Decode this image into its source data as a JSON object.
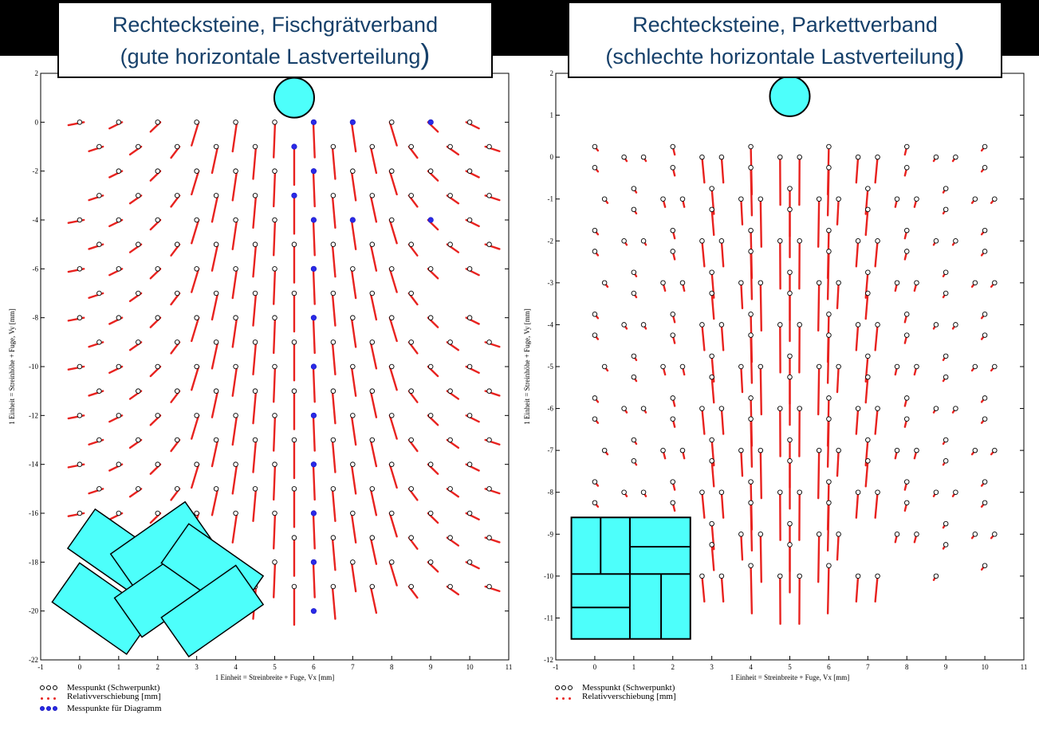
{
  "titles": {
    "left": [
      "Rechtecksteine, Fischgrätverband",
      "(gute horizontale Lastverteilung",
      ")"
    ],
    "right": [
      "Rechtecksteine, Parkettverband",
      "(schlechte horizontale Lastverteilung",
      ")"
    ]
  },
  "colors": {
    "arrow": "#e8221f",
    "blue_point": "#2a2ae8",
    "load_circle": "#4dfffb",
    "stone_fill": "#4dfffb",
    "title_text": "#16406a"
  },
  "legend": {
    "left": [
      "Messpunkt (Schwerpunkt)",
      "Relativverschiebung [mm]",
      "Messpunkte für Diagramm"
    ],
    "right": [
      "Messpunkt (Schwerpunkt)",
      "Relativverschiebung [mm]"
    ]
  },
  "chart_data": [
    {
      "type": "scatter",
      "xlabel": "1 Einheit = Streinbreite + Fuge, Vx [mm]",
      "ylabel": "1 Einheit = Streinhöhe + Fuge, Vy [mm]",
      "xlim": [
        -1,
        11
      ],
      "ylim": [
        -22,
        2
      ],
      "xticks": [
        -1,
        0,
        1,
        2,
        3,
        4,
        5,
        6,
        7,
        8,
        9,
        10,
        11
      ],
      "yticks": [
        -22,
        -20,
        -18,
        -16,
        -14,
        -12,
        -10,
        -8,
        -6,
        -4,
        -2,
        0,
        2
      ],
      "load_circle": {
        "x": 5.5,
        "y": 1
      },
      "blue_points": [
        [
          6,
          0
        ],
        [
          7,
          0
        ],
        [
          9,
          0
        ],
        [
          5.5,
          -1
        ],
        [
          6,
          -2
        ],
        [
          5.5,
          -3
        ],
        [
          6,
          -4
        ],
        [
          7,
          -4
        ],
        [
          9,
          -4
        ],
        [
          6,
          -6
        ],
        [
          6,
          -8
        ],
        [
          6,
          -10
        ],
        [
          6,
          -12
        ],
        [
          6,
          -14
        ],
        [
          6,
          -16
        ],
        [
          6,
          -18
        ],
        [
          6,
          -20
        ]
      ],
      "grid": [
        {
          "y": 0,
          "xs": [
            0,
            1,
            2,
            3,
            4,
            5,
            6,
            7,
            8,
            9,
            10
          ]
        },
        {
          "y": -1,
          "xs": [
            0.5,
            1.5,
            2.5,
            3.5,
            4.5,
            5.5,
            6.5,
            7.5,
            8.5,
            9.5,
            10.5
          ]
        },
        {
          "y": -2,
          "xs": [
            1,
            2,
            3,
            4,
            5,
            6,
            7,
            8,
            9,
            10
          ]
        },
        {
          "y": -3,
          "xs": [
            0.5,
            1.5,
            2.5,
            3.5,
            4.5,
            5.5,
            6.5,
            7.5,
            8.5,
            9.5,
            10.5
          ]
        },
        {
          "y": -4,
          "xs": [
            0,
            1,
            2,
            3,
            4,
            5,
            6,
            7,
            8,
            9,
            10
          ]
        },
        {
          "y": -5,
          "xs": [
            0.5,
            1.5,
            2.5,
            3.5,
            4.5,
            5.5,
            6.5,
            7.5,
            8.5,
            9.5,
            10.5
          ]
        },
        {
          "y": -6,
          "xs": [
            0,
            1,
            2,
            3,
            4,
            5,
            6,
            7,
            8,
            9,
            10
          ]
        },
        {
          "y": -7,
          "xs": [
            0.5,
            1.5,
            2.5,
            3.5,
            4.5,
            5.5,
            6.5,
            7.5,
            8.5
          ]
        },
        {
          "y": -8,
          "xs": [
            0,
            1,
            2,
            3,
            4,
            5,
            6,
            7,
            8,
            9,
            10
          ]
        },
        {
          "y": -9,
          "xs": [
            0.5,
            1.5,
            2.5,
            3.5,
            4.5,
            5.5,
            6.5,
            7.5,
            8.5,
            9.5,
            10.5
          ]
        },
        {
          "y": -10,
          "xs": [
            0,
            1,
            2,
            3,
            4,
            5,
            6,
            7,
            8,
            9,
            10
          ]
        },
        {
          "y": -11,
          "xs": [
            0.5,
            1.5,
            2.5,
            3.5,
            4.5,
            5.5,
            6.5,
            7.5,
            8.5,
            9.5,
            10.5
          ]
        },
        {
          "y": -12,
          "xs": [
            0,
            1,
            2,
            3,
            4,
            5,
            6,
            7,
            8,
            9,
            10
          ]
        },
        {
          "y": -13,
          "xs": [
            0.5,
            1.5,
            2.5,
            3.5,
            4.5,
            5.5,
            6.5,
            7.5,
            8.5,
            9.5,
            10.5
          ]
        },
        {
          "y": -14,
          "xs": [
            0,
            1,
            2,
            3,
            4,
            5,
            6,
            7,
            8,
            9,
            10
          ]
        },
        {
          "y": -15,
          "xs": [
            0.5,
            1.5,
            2.5,
            3.5,
            4.5,
            5.5,
            6.5,
            7.5,
            8.5,
            9.5,
            10.5
          ]
        },
        {
          "y": -16,
          "xs": [
            0,
            1,
            2,
            3,
            4,
            5,
            6,
            7,
            8,
            9,
            10
          ]
        },
        {
          "y": -17,
          "xs": [
            0.5,
            5.5,
            6.5,
            7.5,
            8.5,
            9.5,
            10.5
          ]
        },
        {
          "y": -18,
          "xs": [
            5,
            6,
            7,
            8,
            9,
            10
          ]
        },
        {
          "y": -19,
          "xs": [
            4.5,
            5.5,
            6.5,
            7.5,
            8.5,
            9.5,
            10.5
          ]
        }
      ],
      "stones": [
        {
          "cx": 1.0,
          "cy": -17.7,
          "angle": 35
        },
        {
          "cx": 2.1,
          "cy": -17.4,
          "angle": -35
        },
        {
          "cx": 0.6,
          "cy": -19.9,
          "angle": 35
        },
        {
          "cx": 2.2,
          "cy": -19.2,
          "angle": -35
        },
        {
          "cx": 3.4,
          "cy": -18.3,
          "angle": 35
        },
        {
          "cx": 3.4,
          "cy": -20.0,
          "angle": -35
        }
      ]
    },
    {
      "type": "scatter",
      "xlabel": "1 Einheit = Streinbreite + Fuge, Vx [mm]",
      "ylabel": "1 Einheit = Streinhöhe + Fuge, Vy [mm]",
      "xlim": [
        -1,
        11
      ],
      "ylim": [
        -12,
        2
      ],
      "xticks": [
        -1,
        0,
        1,
        2,
        3,
        4,
        5,
        6,
        7,
        8,
        9,
        10,
        11
      ],
      "yticks": [
        -12,
        -11,
        -10,
        -9,
        -8,
        -7,
        -6,
        -5,
        -4,
        -3,
        -2,
        -1,
        0,
        1,
        2
      ],
      "load_circle": {
        "x": 5,
        "y": 1.45
      },
      "columns": [
        {
          "x": 0,
          "ys": [
            0.25,
            -0.25,
            -1.75,
            -2.25,
            -3.75,
            -4.25,
            -5.75,
            -6.25,
            -7.75,
            -8.25
          ]
        },
        {
          "x": 0.25,
          "ys": [
            -1,
            -3,
            -5,
            -7
          ]
        },
        {
          "x": 0.75,
          "ys": [
            0,
            -2,
            -4,
            -6,
            -8
          ]
        },
        {
          "x": 1,
          "ys": [
            -0.75,
            -1.25,
            -2.75,
            -3.25,
            -4.75,
            -5.25,
            -6.75,
            -7.25
          ]
        },
        {
          "x": 1.25,
          "ys": [
            0,
            -2,
            -4,
            -6,
            -8
          ]
        },
        {
          "x": 1.75,
          "ys": [
            -1,
            -3,
            -5,
            -7,
            -9
          ]
        },
        {
          "x": 2,
          "ys": [
            0.25,
            -0.25,
            -1.75,
            -2.25,
            -3.75,
            -4.25,
            -5.75,
            -6.25,
            -7.75,
            -8.25
          ]
        },
        {
          "x": 2.25,
          "ys": [
            -1,
            -3,
            -5,
            -7,
            -9
          ]
        },
        {
          "x": 2.75,
          "ys": [
            0,
            -2,
            -4,
            -6,
            -8,
            -10
          ]
        },
        {
          "x": 3,
          "ys": [
            -0.75,
            -1.25,
            -2.75,
            -3.25,
            -4.75,
            -5.25,
            -6.75,
            -7.25,
            -8.75,
            -9.25
          ]
        },
        {
          "x": 3.25,
          "ys": [
            0,
            -2,
            -4,
            -6,
            -8,
            -10
          ]
        },
        {
          "x": 3.75,
          "ys": [
            -1,
            -3,
            -5,
            -7,
            -9
          ]
        },
        {
          "x": 4,
          "ys": [
            0.25,
            -0.25,
            -1.75,
            -2.25,
            -3.75,
            -4.25,
            -5.75,
            -6.25,
            -7.75,
            -8.25,
            -9.75
          ]
        },
        {
          "x": 4.25,
          "ys": [
            -1,
            -3,
            -5,
            -7,
            -9
          ]
        },
        {
          "x": 4.75,
          "ys": [
            0,
            -2,
            -4,
            -6,
            -8,
            -10
          ]
        },
        {
          "x": 5,
          "ys": [
            -0.75,
            -1.25,
            -2.75,
            -3.25,
            -4.75,
            -5.25,
            -6.75,
            -7.25,
            -8.75,
            -9.25
          ]
        },
        {
          "x": 5.25,
          "ys": [
            0,
            -2,
            -4,
            -6,
            -8,
            -10
          ]
        },
        {
          "x": 5.75,
          "ys": [
            -1,
            -3,
            -5,
            -7,
            -9
          ]
        },
        {
          "x": 6,
          "ys": [
            0.25,
            -0.25,
            -1.75,
            -2.25,
            -3.75,
            -4.25,
            -5.75,
            -6.25,
            -7.75,
            -8.25,
            -9.75
          ]
        },
        {
          "x": 6.25,
          "ys": [
            -1,
            -3,
            -5,
            -7,
            -9
          ]
        },
        {
          "x": 6.75,
          "ys": [
            0,
            -2,
            -4,
            -6,
            -8,
            -10
          ]
        },
        {
          "x": 7,
          "ys": [
            -0.75,
            -1.25,
            -2.75,
            -3.25,
            -4.75,
            -5.25,
            -6.75,
            -7.25
          ]
        },
        {
          "x": 7.25,
          "ys": [
            0,
            -2,
            -4,
            -6,
            -8,
            -10
          ]
        },
        {
          "x": 7.75,
          "ys": [
            -1,
            -3,
            -5,
            -7,
            -9
          ]
        },
        {
          "x": 8,
          "ys": [
            0.25,
            -0.25,
            -1.75,
            -2.25,
            -3.75,
            -4.25,
            -5.75,
            -6.25,
            -7.75,
            -8.25
          ]
        },
        {
          "x": 8.25,
          "ys": [
            -1,
            -3,
            -5,
            -7,
            -9
          ]
        },
        {
          "x": 8.75,
          "ys": [
            0,
            -2,
            -4,
            -6,
            -8,
            -10
          ]
        },
        {
          "x": 9,
          "ys": [
            -0.75,
            -1.25,
            -2.75,
            -3.25,
            -4.75,
            -5.25,
            -6.75,
            -7.25,
            -8.75,
            -9.25
          ]
        },
        {
          "x": 9.25,
          "ys": [
            0,
            -2,
            -4,
            -6,
            -8
          ]
        },
        {
          "x": 9.75,
          "ys": [
            -1,
            -3,
            -5,
            -7,
            -9
          ]
        },
        {
          "x": 10,
          "ys": [
            0.25,
            -0.25,
            -1.75,
            -2.25,
            -3.75,
            -4.25,
            -5.75,
            -6.25,
            -7.75,
            -8.25,
            -9.75
          ]
        },
        {
          "x": 10.25,
          "ys": [
            -1,
            -3,
            -5,
            -7,
            -9
          ]
        }
      ],
      "parquet": {
        "x0": -0.6,
        "x1": 2.45,
        "y0": -11.5,
        "y1": -8.6,
        "vlines": [
          [
            0.15,
            -9.95,
            -8.6
          ],
          [
            0.9,
            -11.5,
            -8.6
          ],
          [
            1.7,
            -11.5,
            -9.95
          ],
          [
            0.9,
            -9.95,
            -8.6
          ]
        ],
        "hlines": [
          [
            -9.95,
            -0.6,
            2.45
          ],
          [
            -10.75,
            -0.6,
            0.9
          ],
          [
            -9.3,
            0.9,
            2.45
          ]
        ]
      }
    }
  ]
}
